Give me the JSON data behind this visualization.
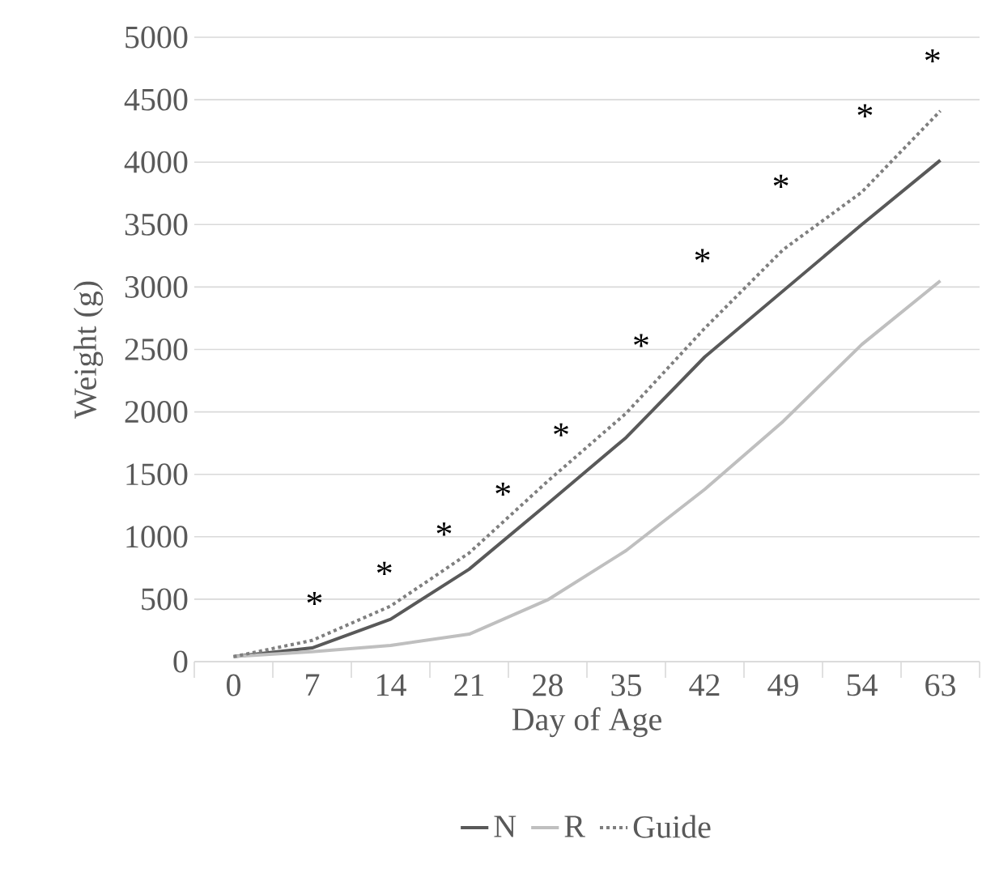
{
  "chart_data": {
    "type": "line",
    "xlabel": "Day of Age",
    "ylabel": "Weight (g)",
    "categories": [
      "0",
      "7",
      "14",
      "21",
      "28",
      "35",
      "42",
      "49",
      "54",
      "63"
    ],
    "series": [
      {
        "name": "N",
        "color": "#595959",
        "line_style": "solid",
        "values": [
          40,
          110,
          340,
          740,
          1265,
          1795,
          2440,
          2970,
          3500,
          4015
        ]
      },
      {
        "name": "R",
        "color": "#bfbfbf",
        "line_style": "solid",
        "values": [
          40,
          80,
          130,
          220,
          495,
          890,
          1380,
          1925,
          2540,
          3050
        ]
      },
      {
        "name": "Guide",
        "color": "#7f7f7f",
        "line_style": "dotted",
        "values": [
          40,
          170,
          445,
          870,
          1445,
          1990,
          2670,
          3300,
          3760,
          4410
        ]
      }
    ],
    "ylim": [
      0,
      5000
    ],
    "yticks": [
      0,
      500,
      1000,
      1500,
      2000,
      2500,
      3000,
      3500,
      4000,
      4500,
      5000
    ],
    "grid": "y",
    "legend": "bottom",
    "annotations": [
      "*",
      "*",
      "*",
      "*",
      "*",
      "*",
      "*",
      "*",
      "*",
      "*"
    ]
  }
}
